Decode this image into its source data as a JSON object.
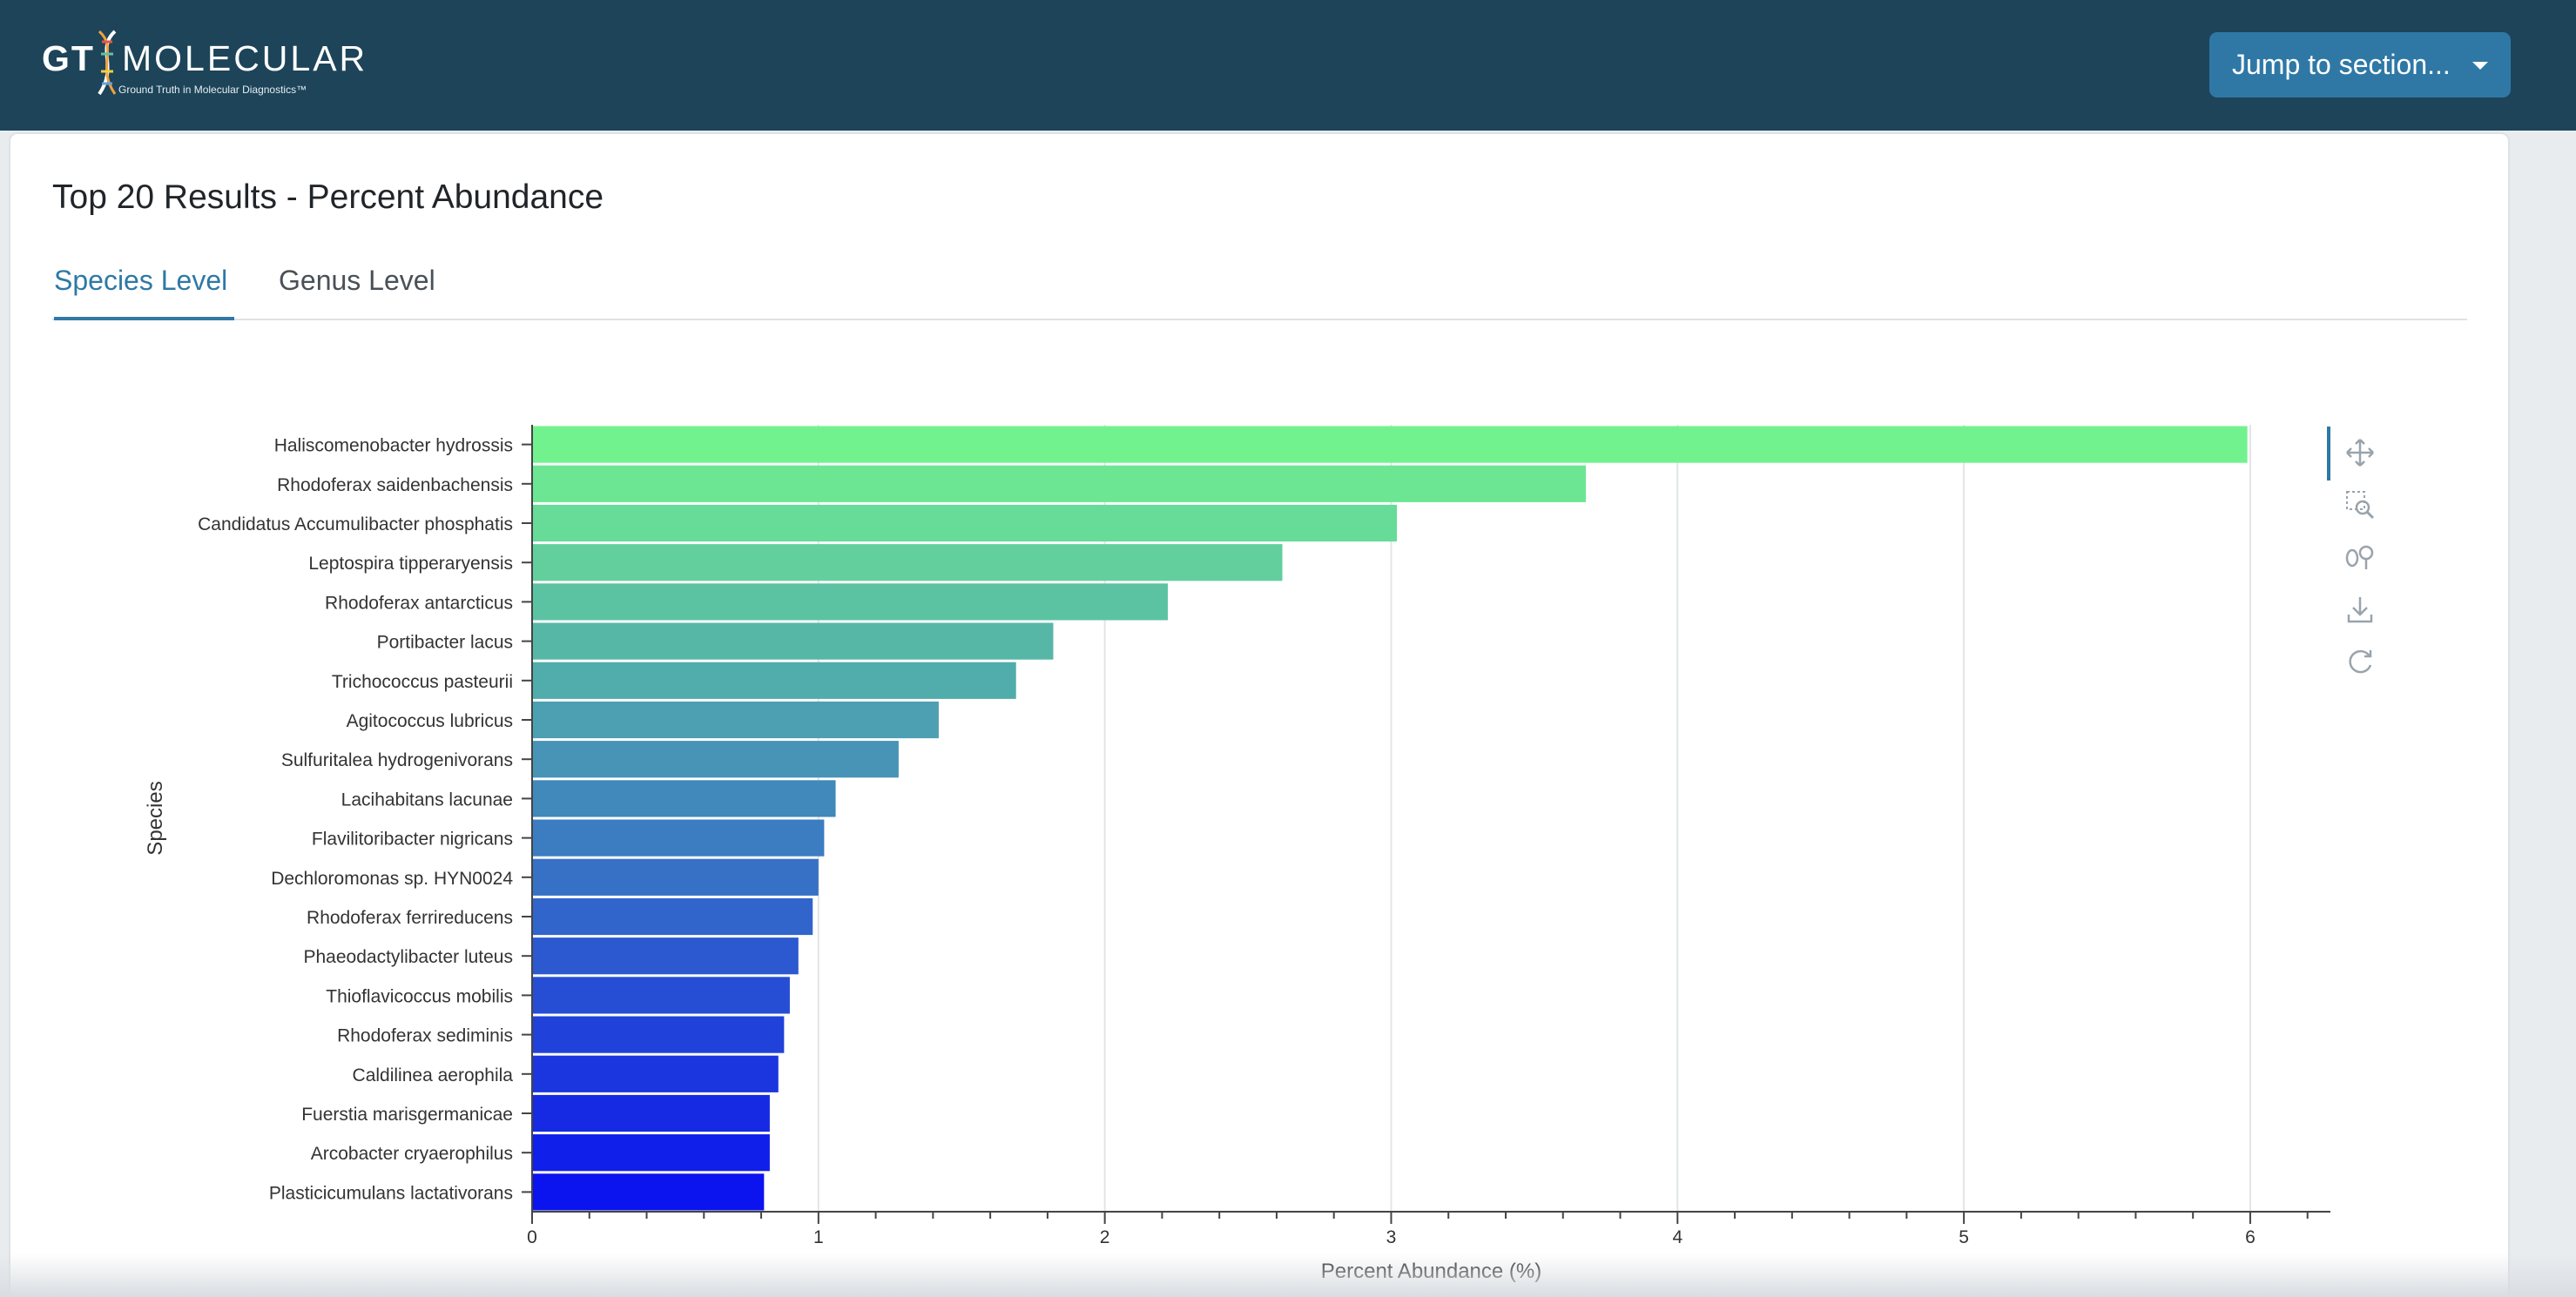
{
  "navbar": {
    "logo": {
      "gt": "GT",
      "word": "MOLECULAR",
      "tagline": "Ground Truth in Molecular Diagnostics™"
    },
    "jump_button": "Jump to section..."
  },
  "page_title": "Top 20 Results - Percent Abundance",
  "tabs": [
    {
      "label": "Species Level",
      "active": true
    },
    {
      "label": "Genus Level",
      "active": false
    }
  ],
  "modebar": {
    "icons": [
      "pan-icon",
      "zoom-icon",
      "reset-scale-icon",
      "download-icon",
      "reset-view-icon"
    ]
  },
  "chart_data": {
    "type": "bar",
    "orientation": "horizontal",
    "xlabel": "Percent Abundance (%)",
    "ylabel": "Species",
    "xlim": [
      0,
      6.28
    ],
    "x_ticks": [
      0,
      1,
      2,
      3,
      4,
      5,
      6
    ],
    "grid": true,
    "color_scale": {
      "top": "#72f28e",
      "bottom": "#0b13ee"
    },
    "categories": [
      "Haliscomenobacter hydrossis",
      "Rhodoferax saidenbachensis",
      "Candidatus Accumulibacter phosphatis",
      "Leptospira tipperaryensis",
      "Rhodoferax antarcticus",
      "Portibacter lacus",
      "Trichococcus pasteurii",
      "Agitococcus lubricus",
      "Sulfuritalea hydrogenivorans",
      "Lacihabitans lacunae",
      "Flavilitoribacter nigricans",
      "Dechloromonas sp. HYN0024",
      "Rhodoferax ferrireducens",
      "Phaeodactylibacter luteus",
      "Thioflavicoccus mobilis",
      "Rhodoferax sediminis",
      "Caldilinea aerophila",
      "Fuerstia marisgermanicae",
      "Arcobacter cryaerophilus",
      "Plasticicumulans lactativorans"
    ],
    "values": [
      5.99,
      3.68,
      3.02,
      2.62,
      2.22,
      1.82,
      1.69,
      1.42,
      1.28,
      1.06,
      1.02,
      1.0,
      0.98,
      0.93,
      0.9,
      0.88,
      0.86,
      0.83,
      0.83,
      0.81
    ]
  }
}
